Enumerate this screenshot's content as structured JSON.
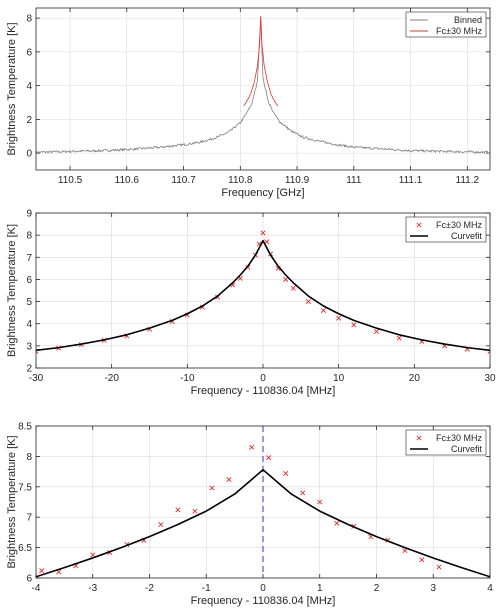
{
  "chart_data": [
    {
      "type": "line",
      "xlabel": "Frequency [GHz]",
      "ylabel": "Brightness Temperature [K]",
      "xlim": [
        110.44,
        111.24
      ],
      "ylim": [
        -1,
        8.6
      ],
      "xticks": [
        110.5,
        110.6,
        110.7,
        110.8,
        110.9,
        111,
        111.1,
        111.2
      ],
      "xtick_labels": [
        "110.5",
        "110.6",
        "110.7",
        "110.8",
        "110.9",
        "111",
        "111.1",
        "111.2"
      ],
      "yticks": [
        0,
        2,
        4,
        6,
        8
      ],
      "ytick_labels": [
        "0",
        "2",
        "4",
        "6",
        "8"
      ],
      "grid": true,
      "legend_position": "top-right",
      "center_x": 110.83604,
      "series": [
        {
          "name": "Binned",
          "color": "#808080",
          "style": "line",
          "x": [
            110.44,
            110.5,
            110.56,
            110.62,
            110.66,
            110.7,
            110.73,
            110.76,
            110.78,
            110.8,
            110.81,
            110.82,
            110.83,
            110.836,
            110.84,
            110.85,
            110.86,
            110.87,
            110.89,
            110.91,
            110.94,
            110.97,
            111.0,
            111.05,
            111.1,
            111.16,
            111.24
          ],
          "y": [
            0.05,
            0.1,
            0.15,
            0.25,
            0.35,
            0.5,
            0.65,
            0.95,
            1.25,
            1.8,
            2.3,
            2.9,
            4.2,
            8.1,
            4.4,
            3.0,
            2.3,
            1.85,
            1.3,
            0.95,
            0.7,
            0.5,
            0.35,
            0.25,
            0.15,
            0.1,
            0.05
          ]
        },
        {
          "name": "Fc±30 MHz",
          "color": "#e03030",
          "style": "line",
          "x": [
            110.806,
            110.812,
            110.818,
            110.824,
            110.83,
            110.834,
            110.836,
            110.838,
            110.842,
            110.848,
            110.854,
            110.86,
            110.866
          ],
          "y": [
            2.8,
            3.1,
            3.5,
            4.1,
            5.1,
            6.4,
            8.1,
            6.5,
            5.2,
            4.2,
            3.5,
            3.1,
            2.8
          ]
        }
      ]
    },
    {
      "type": "scatter",
      "xlabel": "Frequency - 110836.04 [MHz]",
      "ylabel": "Brightness Temperature [K]",
      "xlim": [
        -30,
        30
      ],
      "ylim": [
        2,
        9
      ],
      "xticks": [
        -30,
        -20,
        -10,
        0,
        10,
        20,
        30
      ],
      "xtick_labels": [
        "-30",
        "-20",
        "-10",
        "0",
        "10",
        "20",
        "30"
      ],
      "yticks": [
        2,
        3,
        4,
        5,
        6,
        7,
        8,
        9
      ],
      "ytick_labels": [
        "2",
        "3",
        "4",
        "5",
        "6",
        "7",
        "8",
        "9"
      ],
      "grid": true,
      "legend_position": "top-right",
      "series": [
        {
          "name": "Fc±30 MHz",
          "color": "#e03030",
          "style": "markers",
          "x": [
            -30,
            -27,
            -24,
            -21,
            -18,
            -15,
            -12,
            -10,
            -8,
            -6,
            -4,
            -3,
            -2,
            -1,
            -0.5,
            0,
            0.5,
            1,
            2,
            3,
            4,
            6,
            8,
            10,
            12,
            15,
            18,
            21,
            24,
            27,
            30
          ],
          "y": [
            2.75,
            2.9,
            3.05,
            3.25,
            3.45,
            3.75,
            4.1,
            4.4,
            4.75,
            5.2,
            5.75,
            6.05,
            6.55,
            7.1,
            7.6,
            8.1,
            7.7,
            7.15,
            6.5,
            6.0,
            5.6,
            5.0,
            4.6,
            4.25,
            3.95,
            3.65,
            3.35,
            3.2,
            3.0,
            2.85,
            2.75
          ]
        },
        {
          "name": "Curvefit",
          "color": "#000000",
          "style": "line",
          "x": [
            -30,
            -27,
            -24,
            -21,
            -18,
            -15,
            -12,
            -10,
            -8,
            -6,
            -4,
            -3,
            -2,
            -1,
            0,
            1,
            2,
            3,
            4,
            6,
            8,
            10,
            12,
            15,
            18,
            21,
            24,
            27,
            30
          ],
          "y": [
            2.8,
            2.92,
            3.08,
            3.27,
            3.5,
            3.8,
            4.15,
            4.45,
            4.8,
            5.25,
            5.85,
            6.2,
            6.6,
            7.1,
            7.75,
            7.1,
            6.6,
            6.2,
            5.85,
            5.25,
            4.8,
            4.45,
            4.15,
            3.8,
            3.5,
            3.27,
            3.08,
            2.92,
            2.8
          ]
        }
      ]
    },
    {
      "type": "scatter",
      "xlabel": "Frequency - 110836.04 [MHz]",
      "ylabel": "Brightness Temperature [K]",
      "xlim": [
        -4,
        4
      ],
      "ylim": [
        6,
        8.5
      ],
      "xticks": [
        -4,
        -3,
        -2,
        -1,
        0,
        1,
        2,
        3,
        4
      ],
      "xtick_labels": [
        "-4",
        "-3",
        "-2",
        "-1",
        "0",
        "1",
        "2",
        "3",
        "4"
      ],
      "yticks": [
        6,
        6.5,
        7,
        7.5,
        8,
        8.5
      ],
      "ytick_labels": [
        "6",
        "6.5",
        "7",
        "7.5",
        "8",
        "8.5"
      ],
      "grid": true,
      "legend_position": "top-right",
      "vline_x": 0,
      "vline_color": "#3030d0",
      "series": [
        {
          "name": "Fc±30 MHz",
          "color": "#e03030",
          "style": "markers",
          "x": [
            -3.9,
            -3.6,
            -3.3,
            -3.0,
            -2.7,
            -2.4,
            -2.1,
            -1.8,
            -1.5,
            -1.2,
            -0.9,
            -0.6,
            -0.2,
            0.1,
            0.4,
            0.7,
            1.0,
            1.3,
            1.6,
            1.9,
            2.2,
            2.5,
            2.8,
            3.1
          ],
          "y": [
            6.12,
            6.1,
            6.2,
            6.38,
            6.42,
            6.55,
            6.62,
            6.88,
            7.12,
            7.1,
            7.48,
            7.62,
            8.15,
            7.98,
            7.72,
            7.4,
            7.25,
            6.9,
            6.85,
            6.68,
            6.62,
            6.45,
            6.3,
            6.18
          ]
        },
        {
          "name": "Curvefit",
          "color": "#000000",
          "style": "line",
          "x": [
            -4,
            -3.5,
            -3,
            -2.5,
            -2,
            -1.5,
            -1,
            -0.5,
            0,
            0.5,
            1,
            1.5,
            2,
            2.5,
            3,
            3.5,
            4
          ],
          "y": [
            6.02,
            6.17,
            6.33,
            6.5,
            6.68,
            6.88,
            7.1,
            7.38,
            7.78,
            7.38,
            7.1,
            6.88,
            6.68,
            6.5,
            6.33,
            6.17,
            6.02
          ]
        }
      ]
    }
  ]
}
